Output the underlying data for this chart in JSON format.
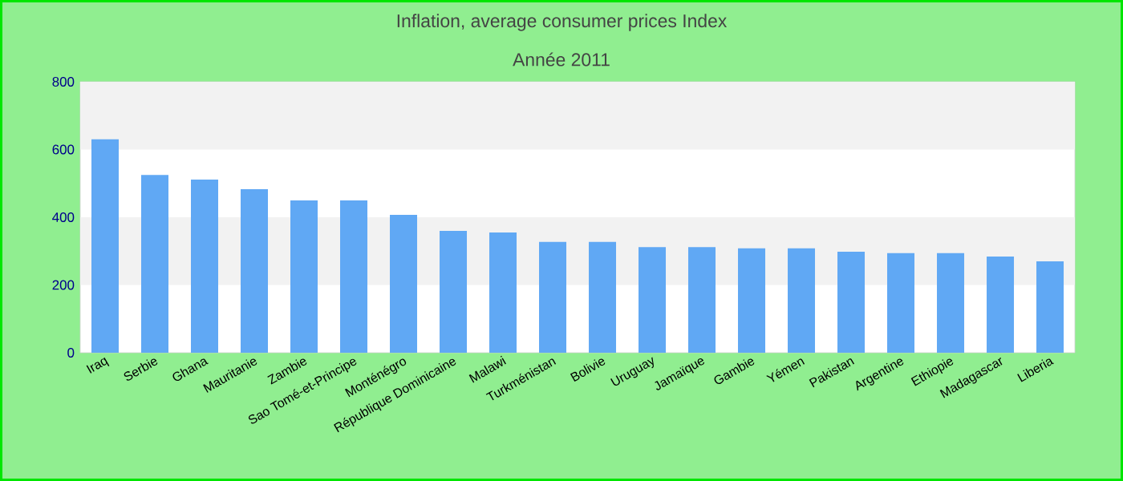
{
  "chart_data": {
    "type": "bar",
    "title": "Inflation, average consumer prices  Index",
    "subtitle": "Année 2011",
    "categories": [
      "Iraq",
      "Serbie",
      "Ghana",
      "Mauritanie",
      "Zambie",
      "Sao Tomé-et-Principe",
      "Monténégro",
      "République Dominicaine",
      "Malawi",
      "Turkménistan",
      "Bolivie",
      "Uruguay",
      "Jamaïque",
      "Gambie",
      "Yémen",
      "Pakistan",
      "Argentine",
      "Ethiopie",
      "Madagascar",
      "Liberia"
    ],
    "values": [
      630,
      525,
      511,
      483,
      450,
      450,
      407,
      360,
      355,
      327,
      327,
      312,
      312,
      308,
      308,
      298,
      294,
      294,
      284,
      270
    ],
    "color": "#60a8f4",
    "ylim": [
      0,
      800
    ],
    "yticks": [
      0,
      200,
      400,
      600,
      800
    ],
    "bands": [
      {
        "axis": "y",
        "from": 200,
        "to": 400,
        "color": "#f2f2f2"
      },
      {
        "axis": "y",
        "from": 600,
        "to": 800,
        "color": "#f2f2f2"
      }
    ],
    "grid": false
  }
}
